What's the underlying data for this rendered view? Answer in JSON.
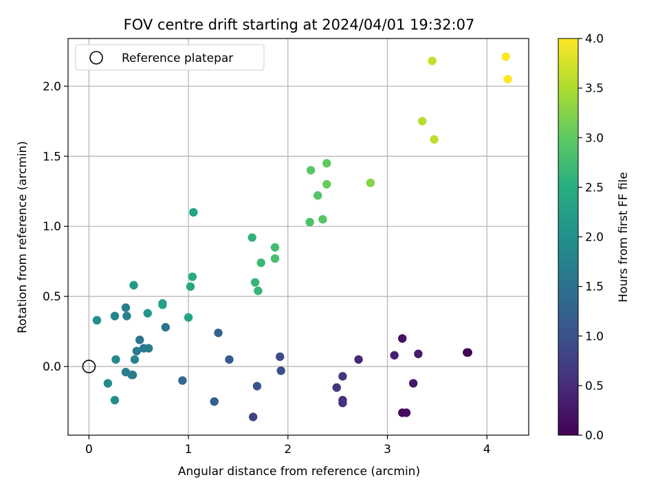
{
  "chart_data": {
    "type": "scatter",
    "title": "FOV centre drift starting at 2024/04/01 19:32:07",
    "xlabel": "Angular distance from reference (arcmin)",
    "ylabel": "Rotation from reference (arcmin)",
    "xlim": [
      -0.21,
      4.42
    ],
    "ylim": [
      -0.49,
      2.34
    ],
    "xticks": [
      0,
      1,
      2,
      3,
      4
    ],
    "xtick_labels": [
      "0",
      "1",
      "2",
      "3",
      "4"
    ],
    "yticks": [
      0.0,
      0.5,
      1.0,
      1.5,
      2.0
    ],
    "ytick_labels": [
      "0.0",
      "0.5",
      "1.0",
      "1.5",
      "2.0"
    ],
    "grid": true,
    "legend": {
      "position": "top-left",
      "entries": [
        "Reference platepar"
      ]
    },
    "reference_point": {
      "x": 0,
      "y": 0,
      "label": "Reference platepar",
      "marker": "open-circle"
    },
    "colorbar": {
      "label": "Hours from first FF file",
      "colormap": "viridis",
      "range": [
        0,
        4
      ],
      "ticks": [
        0,
        0.5,
        1,
        1.5,
        2,
        2.5,
        3,
        3.5,
        4
      ],
      "tick_labels": [
        "0.0",
        "0.5",
        "1.0",
        "1.5",
        "2.0",
        "2.5",
        "3.0",
        "3.5",
        "4.0"
      ]
    },
    "points": [
      {
        "x": 3.8,
        "y": 0.1,
        "c": 0.0
      },
      {
        "x": 3.81,
        "y": 0.1,
        "c": 0.03
      },
      {
        "x": 3.15,
        "y": -0.33,
        "c": 0.1
      },
      {
        "x": 3.19,
        "y": -0.33,
        "c": 0.15
      },
      {
        "x": 3.15,
        "y": 0.2,
        "c": 0.2
      },
      {
        "x": 3.26,
        "y": -0.12,
        "c": 0.25
      },
      {
        "x": 3.31,
        "y": 0.09,
        "c": 0.3
      },
      {
        "x": 3.07,
        "y": 0.08,
        "c": 0.35
      },
      {
        "x": 2.71,
        "y": 0.05,
        "c": 0.45
      },
      {
        "x": 2.55,
        "y": -0.24,
        "c": 0.5
      },
      {
        "x": 2.55,
        "y": -0.26,
        "c": 0.55
      },
      {
        "x": 2.49,
        "y": -0.15,
        "c": 0.6
      },
      {
        "x": 2.55,
        "y": -0.07,
        "c": 0.65
      },
      {
        "x": 1.65,
        "y": -0.36,
        "c": 0.8
      },
      {
        "x": 1.92,
        "y": 0.07,
        "c": 0.9
      },
      {
        "x": 1.93,
        "y": -0.03,
        "c": 0.95
      },
      {
        "x": 1.69,
        "y": -0.14,
        "c": 1.05
      },
      {
        "x": 1.41,
        "y": 0.05,
        "c": 1.15
      },
      {
        "x": 1.26,
        "y": -0.25,
        "c": 1.2
      },
      {
        "x": 1.3,
        "y": 0.24,
        "c": 1.25
      },
      {
        "x": 0.94,
        "y": -0.1,
        "c": 1.35
      },
      {
        "x": 0.77,
        "y": 0.28,
        "c": 1.5
      },
      {
        "x": 0.51,
        "y": 0.19,
        "c": 1.55
      },
      {
        "x": 0.55,
        "y": 0.13,
        "c": 1.6
      },
      {
        "x": 0.48,
        "y": 0.11,
        "c": 1.6
      },
      {
        "x": 0.6,
        "y": 0.13,
        "c": 1.65
      },
      {
        "x": 0.44,
        "y": -0.06,
        "c": 1.6
      },
      {
        "x": 0.43,
        "y": -0.06,
        "c": 1.65
      },
      {
        "x": 0.37,
        "y": -0.04,
        "c": 1.7
      },
      {
        "x": 0.37,
        "y": 0.42,
        "c": 1.7
      },
      {
        "x": 0.38,
        "y": 0.36,
        "c": 1.75
      },
      {
        "x": 0.46,
        "y": 0.05,
        "c": 1.8
      },
      {
        "x": 0.26,
        "y": 0.36,
        "c": 1.8
      },
      {
        "x": 0.27,
        "y": 0.05,
        "c": 1.85
      },
      {
        "x": 0.19,
        "y": -0.12,
        "c": 1.9
      },
      {
        "x": 0.26,
        "y": -0.24,
        "c": 1.95
      },
      {
        "x": 0.08,
        "y": 0.33,
        "c": 2.0
      },
      {
        "x": 0.59,
        "y": 0.38,
        "c": 2.1
      },
      {
        "x": 0.45,
        "y": 0.58,
        "c": 2.15
      },
      {
        "x": 0.74,
        "y": 0.45,
        "c": 2.25
      },
      {
        "x": 0.74,
        "y": 0.44,
        "c": 2.3
      },
      {
        "x": 1.0,
        "y": 0.35,
        "c": 2.35
      },
      {
        "x": 1.02,
        "y": 0.57,
        "c": 2.4
      },
      {
        "x": 1.04,
        "y": 0.64,
        "c": 2.45
      },
      {
        "x": 1.05,
        "y": 1.1,
        "c": 2.3
      },
      {
        "x": 1.64,
        "y": 0.92,
        "c": 2.6
      },
      {
        "x": 1.67,
        "y": 0.6,
        "c": 2.65
      },
      {
        "x": 1.7,
        "y": 0.54,
        "c": 2.65
      },
      {
        "x": 1.73,
        "y": 0.74,
        "c": 2.7
      },
      {
        "x": 1.87,
        "y": 0.85,
        "c": 2.75
      },
      {
        "x": 1.87,
        "y": 0.77,
        "c": 2.8
      },
      {
        "x": 2.22,
        "y": 1.03,
        "c": 2.85
      },
      {
        "x": 2.35,
        "y": 1.05,
        "c": 2.9
      },
      {
        "x": 2.3,
        "y": 1.22,
        "c": 2.9
      },
      {
        "x": 2.23,
        "y": 1.4,
        "c": 2.95
      },
      {
        "x": 2.39,
        "y": 1.45,
        "c": 3.0
      },
      {
        "x": 2.39,
        "y": 1.3,
        "c": 3.05
      },
      {
        "x": 2.83,
        "y": 1.31,
        "c": 3.25
      },
      {
        "x": 3.35,
        "y": 1.75,
        "c": 3.55
      },
      {
        "x": 3.47,
        "y": 1.62,
        "c": 3.6
      },
      {
        "x": 3.45,
        "y": 2.18,
        "c": 3.65
      },
      {
        "x": 4.19,
        "y": 2.21,
        "c": 4.0
      },
      {
        "x": 4.21,
        "y": 2.05,
        "c": 4.0
      }
    ]
  }
}
